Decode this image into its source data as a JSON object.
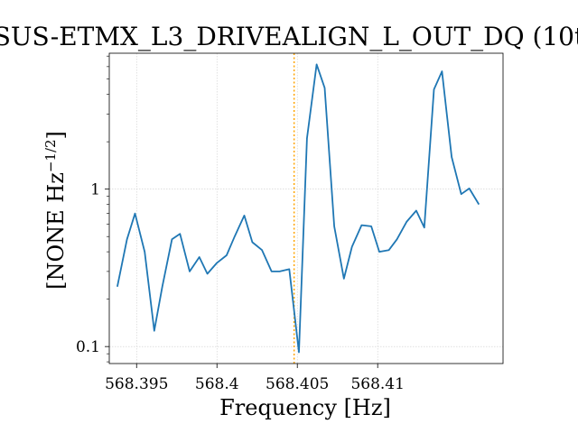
{
  "chart_data": {
    "type": "line",
    "title": "SUS-ETMX_L3_DRIVEALIGN_L_OUT_DQ (10t",
    "xlabel": "Frequency [Hz]",
    "ylabel": "[NONE Hz",
    "ylabel_exponent": "−1/2",
    "ylabel_close": "]",
    "yscale": "log",
    "xlim": [
      568.3933,
      568.4178
    ],
    "ylim": [
      0.078,
      7.3
    ],
    "xticks": [
      568.395,
      568.4,
      568.405,
      568.41
    ],
    "xtick_labels": [
      "568.395",
      "568.4",
      "568.405",
      "568.41"
    ],
    "yticks": [
      0.1,
      1
    ],
    "ytick_labels": [
      "0.1",
      "1"
    ],
    "grid": true,
    "marker_line": {
      "x": 568.4048,
      "color": "#ffa500",
      "style": "dotted"
    },
    "series": [
      {
        "color": "#1f77b4",
        "x": [
          568.3938,
          568.3944,
          568.3949,
          568.3955,
          568.3961,
          568.3966,
          568.3972,
          568.3977,
          568.3983,
          568.3989,
          568.3994,
          568.4,
          568.4006,
          568.4011,
          568.4017,
          568.4022,
          568.4028,
          568.4034,
          568.4039,
          568.4045,
          568.4051,
          568.4056,
          568.4062,
          568.4067,
          568.4073,
          568.4079,
          568.4084,
          568.409,
          568.4096,
          568.4101,
          568.4107,
          568.4112,
          568.4118,
          568.4124,
          568.4129,
          568.4135,
          568.414,
          568.4146,
          568.4152,
          568.4157,
          568.4163
        ],
        "values": [
          0.24,
          0.48,
          0.7,
          0.4,
          0.126,
          0.24,
          0.48,
          0.52,
          0.3,
          0.37,
          0.29,
          0.34,
          0.38,
          0.5,
          0.68,
          0.46,
          0.41,
          0.3,
          0.3,
          0.31,
          0.092,
          2.1,
          6.2,
          4.4,
          0.58,
          0.27,
          0.43,
          0.59,
          0.58,
          0.4,
          0.41,
          0.48,
          0.62,
          0.73,
          0.57,
          4.3,
          5.6,
          1.6,
          0.93,
          1.01,
          0.8
        ]
      }
    ]
  }
}
